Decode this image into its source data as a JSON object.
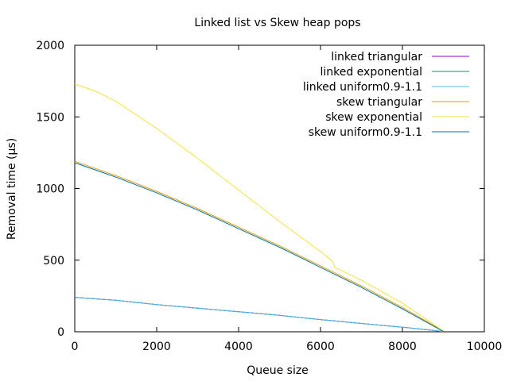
{
  "chart_data": {
    "type": "line",
    "title": "Linked list vs Skew heap pops",
    "xlabel": "Queue size",
    "ylabel": "Removal time (µs)",
    "xlim": [
      0,
      10000
    ],
    "ylim": [
      0,
      2000
    ],
    "x_ticks": [
      0,
      2000,
      4000,
      6000,
      8000,
      10000
    ],
    "y_ticks": [
      0,
      500,
      1000,
      1500,
      2000
    ],
    "grid": false,
    "legend_position": "top-right",
    "series": [
      {
        "name": "linked triangular",
        "color": "#9400d3",
        "points": [
          [
            0,
            240
          ],
          [
            1000,
            220
          ],
          [
            2000,
            190
          ],
          [
            3000,
            165
          ],
          [
            4000,
            140
          ],
          [
            5000,
            115
          ],
          [
            6000,
            85
          ],
          [
            7000,
            58
          ],
          [
            8000,
            32
          ],
          [
            9000,
            2
          ]
        ]
      },
      {
        "name": "linked exponential",
        "color": "#009e73",
        "points": [
          [
            0,
            240
          ],
          [
            1000,
            220
          ],
          [
            2000,
            190
          ],
          [
            3000,
            165
          ],
          [
            4000,
            140
          ],
          [
            5000,
            115
          ],
          [
            6000,
            85
          ],
          [
            7000,
            58
          ],
          [
            8000,
            32
          ],
          [
            9000,
            2
          ]
        ]
      },
      {
        "name": "linked uniform0.9-1.1",
        "color": "#56b4e9",
        "points": [
          [
            0,
            240
          ],
          [
            1000,
            220
          ],
          [
            2000,
            190
          ],
          [
            3000,
            165
          ],
          [
            4000,
            140
          ],
          [
            5000,
            115
          ],
          [
            6000,
            85
          ],
          [
            7000,
            58
          ],
          [
            8000,
            32
          ],
          [
            9000,
            2
          ]
        ]
      },
      {
        "name": "skew triangular",
        "color": "#e69f00",
        "points": [
          [
            0,
            1190
          ],
          [
            1000,
            1090
          ],
          [
            2000,
            980
          ],
          [
            3000,
            860
          ],
          [
            4000,
            730
          ],
          [
            5000,
            600
          ],
          [
            6000,
            460
          ],
          [
            7000,
            320
          ],
          [
            8000,
            170
          ],
          [
            9000,
            5
          ]
        ]
      },
      {
        "name": "skew exponential",
        "color": "#f0e442",
        "points": [
          [
            0,
            1730
          ],
          [
            500,
            1680
          ],
          [
            1000,
            1610
          ],
          [
            2000,
            1420
          ],
          [
            3000,
            1210
          ],
          [
            4000,
            990
          ],
          [
            5000,
            770
          ],
          [
            6000,
            560
          ],
          [
            6300,
            490
          ],
          [
            6350,
            450
          ],
          [
            7000,
            360
          ],
          [
            8000,
            200
          ],
          [
            9000,
            5
          ]
        ]
      },
      {
        "name": "skew uniform0.9-1.1",
        "color": "#0072b2",
        "points": [
          [
            0,
            1180
          ],
          [
            1000,
            1080
          ],
          [
            2000,
            970
          ],
          [
            3000,
            850
          ],
          [
            4000,
            720
          ],
          [
            5000,
            590
          ],
          [
            6000,
            450
          ],
          [
            7000,
            310
          ],
          [
            8000,
            160
          ],
          [
            9000,
            2
          ]
        ]
      }
    ]
  }
}
